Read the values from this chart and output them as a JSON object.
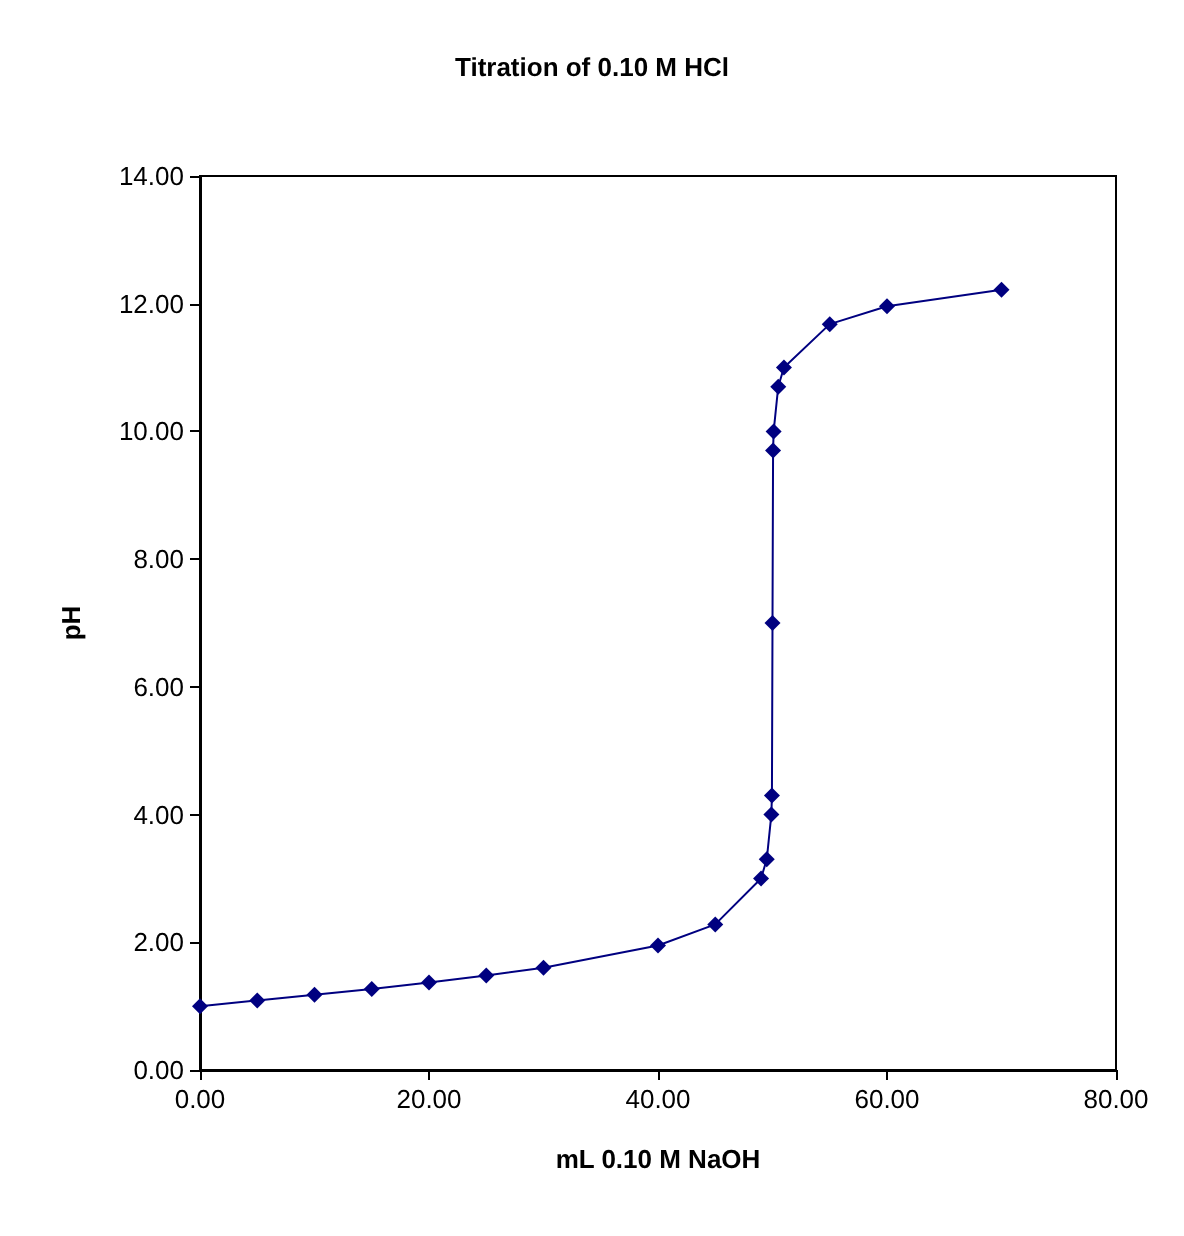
{
  "chart_data": {
    "type": "line",
    "title": "Titration of 0.10 M HCl",
    "xlabel": "mL 0.10 M NaOH",
    "ylabel": "pH",
    "x": [
      0,
      5,
      10,
      15,
      20,
      25,
      30,
      40,
      45,
      49,
      49.5,
      49.9,
      49.95,
      50,
      50.05,
      50.1,
      50.5,
      51,
      55,
      60,
      70
    ],
    "series": [
      {
        "color": "#000080",
        "values": [
          1.0,
          1.09,
          1.18,
          1.27,
          1.37,
          1.48,
          1.6,
          1.95,
          2.28,
          3.0,
          3.3,
          4.0,
          4.3,
          7.0,
          9.7,
          10.0,
          10.7,
          11.0,
          11.68,
          11.96,
          12.22
        ]
      }
    ],
    "xlim": [
      0,
      80
    ],
    "xticks": [
      {
        "value": 0,
        "label": "0.00"
      },
      {
        "value": 20,
        "label": "20.00"
      },
      {
        "value": 40,
        "label": "40.00"
      },
      {
        "value": 60,
        "label": "60.00"
      },
      {
        "value": 80,
        "label": "80.00"
      }
    ],
    "ylim": [
      0,
      14
    ],
    "yticks": [
      {
        "value": 0,
        "label": "0.00"
      },
      {
        "value": 2,
        "label": "2.00"
      },
      {
        "value": 4,
        "label": "4.00"
      },
      {
        "value": 6,
        "label": "6.00"
      },
      {
        "value": 8,
        "label": "8.00"
      },
      {
        "value": 10,
        "label": "10.00"
      },
      {
        "value": 12,
        "label": "12.00"
      },
      {
        "value": 14,
        "label": "14.00"
      }
    ],
    "grid": false,
    "marker": "diamond",
    "line_style": "solid"
  }
}
